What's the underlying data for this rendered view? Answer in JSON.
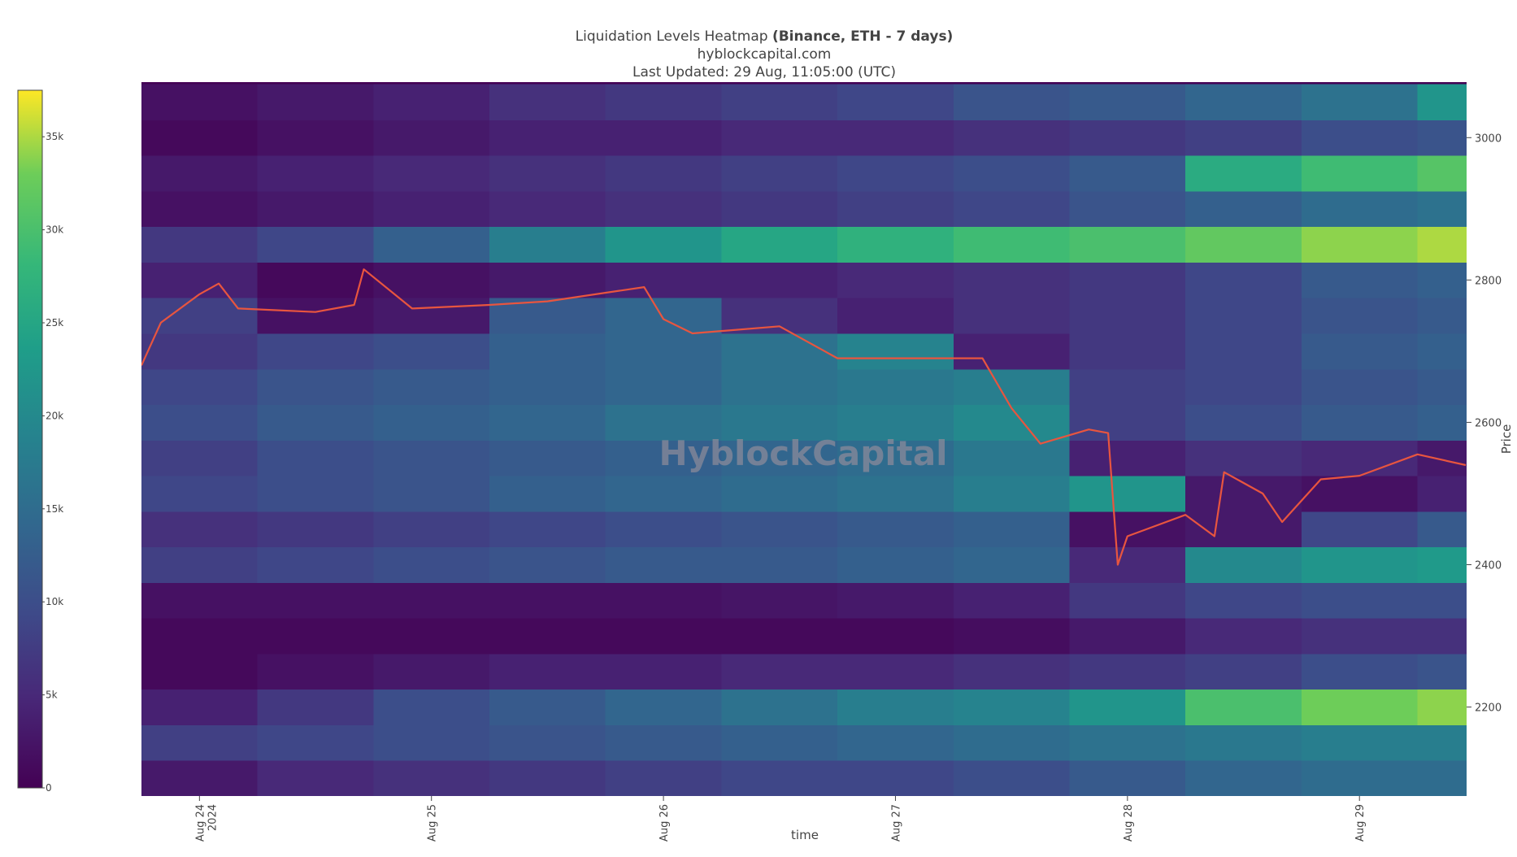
{
  "chart_data": {
    "type": "heatmap",
    "title": "Liquidation Levels Heatmap",
    "title_bold": "(Binance, ETH - 7 days)",
    "subtitle": "hyblockcapital.com",
    "updated": "Last Updated: 29 Aug, 11:05:00 (UTC)",
    "watermark": "HyblockCapital",
    "x_label": "time",
    "y_label": "Price",
    "colorscale": "Viridis",
    "zlim": [
      0,
      37500
    ],
    "zticks": [
      0,
      {
        "value": 5000,
        "label": "5k"
      },
      {
        "value": 10000,
        "label": "10k"
      },
      {
        "value": 15000,
        "label": "15k"
      },
      {
        "value": 20000,
        "label": "20k"
      },
      {
        "value": 25000,
        "label": "25k"
      },
      {
        "value": 30000,
        "label": "30k"
      },
      {
        "value": 35000,
        "label": "35k"
      }
    ],
    "xlim": [
      "2024-08-23 18:00",
      "2024-08-29 11:05"
    ],
    "xticks": [
      {
        "value": "2024-08-24",
        "label": "Aug 24"
      },
      {
        "value": "2024-08-25",
        "label": "Aug 25"
      },
      {
        "value": "2024-08-26",
        "label": "Aug 26"
      },
      {
        "value": "2024-08-27",
        "label": "Aug 27"
      },
      {
        "value": "2024-08-28",
        "label": "Aug 28"
      },
      {
        "value": "2024-08-29",
        "label": "Aug 29"
      }
    ],
    "xtick_year": "2024",
    "ylim": [
      2075,
      3078
    ],
    "yticks": [
      2200,
      2400,
      2600,
      2800,
      3000
    ],
    "x": [
      "2024-08-23 18:00",
      "2024-08-24 06:00",
      "2024-08-24 18:00",
      "2024-08-25 06:00",
      "2024-08-25 18:00",
      "2024-08-26 06:00",
      "2024-08-26 18:00",
      "2024-08-27 06:00",
      "2024-08-27 18:00",
      "2024-08-28 06:00",
      "2024-08-28 18:00",
      "2024-08-29 06:00"
    ],
    "y": [
      2100,
      2150,
      2200,
      2250,
      2300,
      2350,
      2400,
      2450,
      2500,
      2550,
      2600,
      2650,
      2700,
      2750,
      2800,
      2850,
      2900,
      2950,
      3000,
      3050
    ],
    "z": [
      [
        3000,
        5000,
        6000,
        7000,
        8000,
        9000,
        9000,
        10000,
        12000,
        14000,
        15000,
        15000
      ],
      [
        8000,
        9000,
        10000,
        11000,
        12000,
        13000,
        14000,
        15000,
        16000,
        17000,
        18000,
        18000
      ],
      [
        4000,
        7000,
        10000,
        12000,
        14000,
        16000,
        18000,
        19000,
        22000,
        30000,
        33000,
        34000
      ],
      [
        1000,
        2000,
        3000,
        4000,
        4000,
        5000,
        5000,
        6000,
        7000,
        8000,
        10000,
        11000
      ],
      [
        1000,
        1000,
        1000,
        1000,
        1000,
        1000,
        1000,
        1500,
        3000,
        5000,
        6000,
        6000
      ],
      [
        2000,
        2000,
        2000,
        2000,
        2000,
        2500,
        3000,
        4000,
        7000,
        9000,
        10000,
        10000
      ],
      [
        8000,
        9000,
        10000,
        11000,
        12000,
        12000,
        13000,
        14000,
        5000,
        20000,
        22000,
        23000
      ],
      [
        6000,
        7000,
        8000,
        9000,
        10000,
        11000,
        12000,
        13000,
        2000,
        3000,
        9000,
        12000
      ],
      [
        9000,
        10000,
        11000,
        13000,
        14000,
        15000,
        16000,
        18000,
        22000,
        3000,
        2000,
        4000
      ],
      [
        8000,
        10000,
        11000,
        12000,
        13000,
        14000,
        15000,
        17000,
        4000,
        6000,
        5000,
        3000
      ],
      [
        10000,
        12000,
        13000,
        14000,
        16000,
        17000,
        18000,
        20000,
        8000,
        10000,
        12000,
        13000
      ],
      [
        9000,
        11000,
        12000,
        13000,
        14000,
        16000,
        17000,
        18000,
        8000,
        9000,
        11000,
        12000
      ],
      [
        7000,
        9000,
        10000,
        13000,
        14000,
        16000,
        19000,
        4000,
        7000,
        9000,
        12000,
        13000
      ],
      [
        8000,
        2000,
        3000,
        12000,
        14000,
        6000,
        4000,
        6000,
        7000,
        9000,
        11000,
        12000
      ],
      [
        4000,
        1000,
        2000,
        3000,
        4000,
        4000,
        5000,
        6000,
        7000,
        9000,
        12000,
        13000
      ],
      [
        7000,
        9000,
        13000,
        18000,
        22000,
        25000,
        27000,
        29000,
        30000,
        32000,
        34000,
        35000
      ],
      [
        2000,
        3000,
        4000,
        5000,
        6000,
        7000,
        8000,
        9000,
        11000,
        13000,
        15000,
        16000
      ],
      [
        3000,
        4000,
        5000,
        6000,
        7000,
        8000,
        9000,
        10000,
        12000,
        26000,
        29000,
        31000
      ],
      [
        1000,
        2000,
        3000,
        4000,
        4000,
        5000,
        5000,
        6000,
        7000,
        8000,
        10000,
        11000
      ],
      [
        2000,
        3000,
        4000,
        6000,
        7000,
        8000,
        9000,
        11000,
        12000,
        14000,
        16000,
        22000
      ]
    ],
    "price": {
      "color": "#e8553f",
      "x": [
        "2024-08-23 18:00",
        "2024-08-23 20:00",
        "2024-08-24 00:00",
        "2024-08-24 02:00",
        "2024-08-24 04:00",
        "2024-08-24 12:00",
        "2024-08-24 16:00",
        "2024-08-24 17:00",
        "2024-08-24 22:00",
        "2024-08-25 06:00",
        "2024-08-25 12:00",
        "2024-08-25 22:00",
        "2024-08-26 00:00",
        "2024-08-26 03:00",
        "2024-08-26 12:00",
        "2024-08-26 18:00",
        "2024-08-27 00:00",
        "2024-08-27 09:00",
        "2024-08-27 12:00",
        "2024-08-27 15:00",
        "2024-08-27 20:00",
        "2024-08-27 22:00",
        "2024-08-27 23:00",
        "2024-08-28 00:00",
        "2024-08-28 06:00",
        "2024-08-28 09:00",
        "2024-08-28 10:00",
        "2024-08-28 14:00",
        "2024-08-28 16:00",
        "2024-08-28 20:00",
        "2024-08-29 00:00",
        "2024-08-29 06:00",
        "2024-08-29 11:00"
      ],
      "values": [
        2680,
        2740,
        2780,
        2795,
        2760,
        2755,
        2765,
        2815,
        2760,
        2765,
        2770,
        2790,
        2745,
        2725,
        2735,
        2690,
        2690,
        2690,
        2620,
        2570,
        2590,
        2585,
        2400,
        2440,
        2470,
        2440,
        2530,
        2500,
        2460,
        2520,
        2525,
        2555,
        2540
      ]
    }
  }
}
